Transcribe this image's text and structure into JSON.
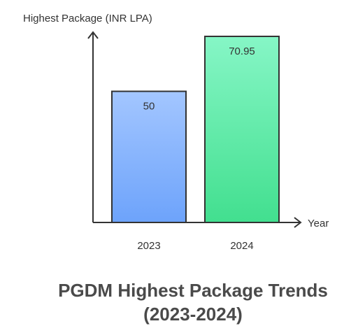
{
  "chart_data": {
    "type": "bar",
    "title": [
      "PGDM Highest Package Trends",
      "(2023-2024)"
    ],
    "ylabel": "Highest Package (INR LPA)",
    "xlabel": "Year",
    "categories": [
      "2023",
      "2024"
    ],
    "values": [
      50,
      70.95
    ],
    "data_labels": [
      "50",
      "70.95"
    ],
    "colors": {
      "bar_2023_top": "#a3c6ff",
      "bar_2023_bottom": "#6da3fb",
      "bar_2024_top": "#86f6c6",
      "bar_2024_bottom": "#42df8f",
      "axis": "#333333",
      "text": "#333333",
      "title": "#4a4a4a"
    }
  }
}
